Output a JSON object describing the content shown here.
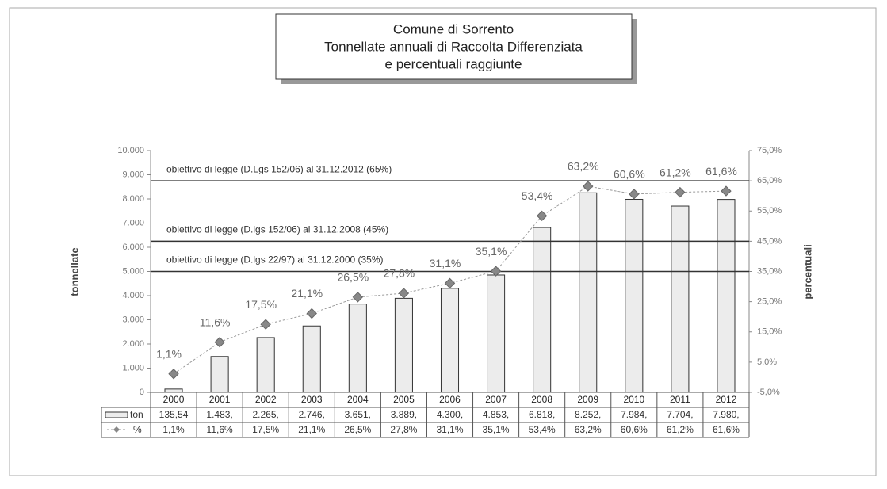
{
  "chart_data": {
    "type": "bar_line",
    "title": [
      "Comune di Sorrento",
      "Tonnellate annuali di Raccolta Differenziata",
      "e percentuali raggiunte"
    ],
    "categories": [
      "2000",
      "2001",
      "2002",
      "2003",
      "2004",
      "2005",
      "2006",
      "2007",
      "2008",
      "2009",
      "2010",
      "2011",
      "2012"
    ],
    "series": [
      {
        "name": "ton",
        "type": "bar",
        "color": "#ececec",
        "values": [
          135.54,
          1483,
          2265,
          2746,
          3651,
          3889,
          4300,
          4853,
          6818,
          8252,
          7984,
          7704,
          7980
        ],
        "value_labels": [
          "135,54",
          "1.483,",
          "2.265,",
          "2.746,",
          "3.651,",
          "3.889,",
          "4.300,",
          "4.853,",
          "6.818,",
          "8.252,",
          "7.984,",
          "7.704,",
          "7.980,"
        ]
      },
      {
        "name": "%",
        "type": "line",
        "axis": "y2",
        "color": "#888888",
        "values": [
          1.1,
          11.6,
          17.5,
          21.1,
          26.5,
          27.8,
          31.1,
          35.1,
          53.4,
          63.2,
          60.6,
          61.2,
          61.6
        ],
        "value_labels": [
          "1,1%",
          "11,6%",
          "17,5%",
          "21,1%",
          "26,5%",
          "27,8%",
          "31,1%",
          "35,1%",
          "53,4%",
          "63,2%",
          "60,6%",
          "61,2%",
          "61,6%"
        ]
      }
    ],
    "ylabel": "tonnellate",
    "y2label": "percentuali",
    "ylim": [
      0,
      10000
    ],
    "yticks": [
      0,
      {
        "value": 1000,
        "label": "1.000"
      },
      {
        "value": 2000,
        "label": "2.000"
      },
      {
        "value": 3000,
        "label": "3.000"
      },
      {
        "value": 4000,
        "label": "4.000"
      },
      {
        "value": 5000,
        "label": "5.000"
      },
      {
        "value": 6000,
        "label": "6.000"
      },
      {
        "value": 7000,
        "label": "7.000"
      },
      {
        "value": 8000,
        "label": "8.000"
      },
      {
        "value": 9000,
        "label": "9.000"
      },
      {
        "value": 10000,
        "label": "10.000"
      }
    ],
    "y2lim": [
      -5,
      75
    ],
    "y2ticks": [
      {
        "value": -5,
        "label": "-5,0%"
      },
      {
        "value": 5,
        "label": "5,0%"
      },
      {
        "value": 15,
        "label": "15,0%"
      },
      {
        "value": 25,
        "label": "25,0%"
      },
      {
        "value": 35,
        "label": "35,0%"
      },
      {
        "value": 45,
        "label": "45,0%"
      },
      {
        "value": 55,
        "label": "55,0%"
      },
      {
        "value": 65,
        "label": "65,0%"
      },
      {
        "value": 75,
        "label": "75,0%"
      }
    ],
    "reference_lines": [
      {
        "value": 65,
        "label": "obiettivo di legge (D.Lgs 152/06) al 31.12.2012 (65%)"
      },
      {
        "value": 45,
        "label": "obiettivo di legge  (D.lgs 152/06) al 31.12.2008 (45%)"
      },
      {
        "value": 35,
        "label": "obiettivo di legge  (D.lgs 22/97) al 31.12.2000 (35%)"
      }
    ]
  }
}
